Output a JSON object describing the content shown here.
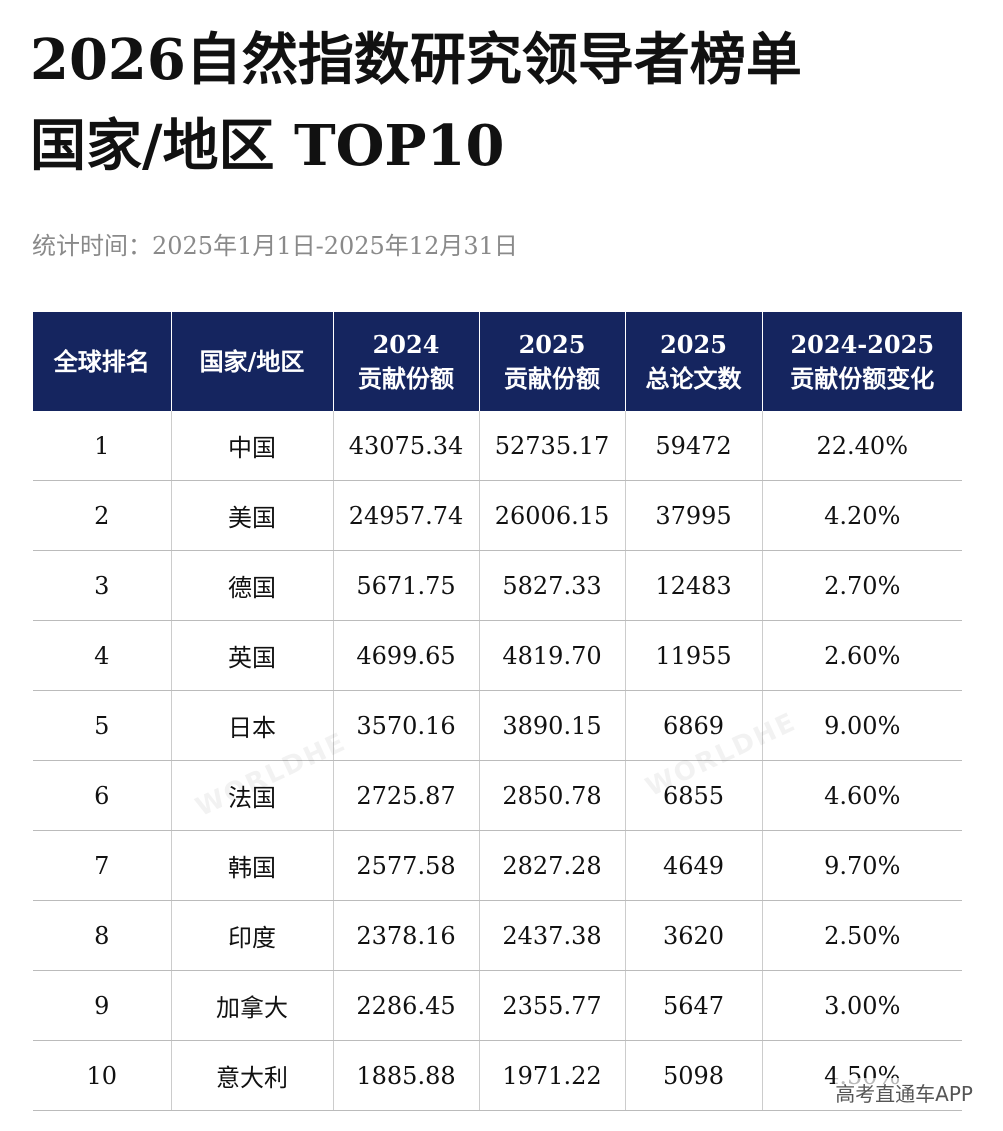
{
  "header": {
    "title_lines": [
      "2026自然指数研究领导者榜单",
      "国家/地区 TOP10"
    ],
    "subtitle": "统计时间：2025年1月1日-2025年12月31日"
  },
  "table": {
    "columns": [
      [
        "全球排名"
      ],
      [
        "国家/地区"
      ],
      [
        "2024",
        "贡献份额"
      ],
      [
        "2025",
        "贡献份额"
      ],
      [
        "2025",
        "总论文数"
      ],
      [
        "2024-2025",
        "贡献份额变化"
      ]
    ],
    "rows": [
      [
        "1",
        "中国",
        "43075.34",
        "52735.17",
        "59472",
        "22.40%"
      ],
      [
        "2",
        "美国",
        "24957.74",
        "26006.15",
        "37995",
        "4.20%"
      ],
      [
        "3",
        "德国",
        "5671.75",
        "5827.33",
        "12483",
        "2.70%"
      ],
      [
        "4",
        "英国",
        "4699.65",
        "4819.70",
        "11955",
        "2.60%"
      ],
      [
        "5",
        "日本",
        "3570.16",
        "3890.15",
        "6869",
        "9.00%"
      ],
      [
        "6",
        "法国",
        "2725.87",
        "2850.78",
        "6855",
        "4.60%"
      ],
      [
        "7",
        "韩国",
        "2577.58",
        "2827.28",
        "4649",
        "9.70%"
      ],
      [
        "8",
        "印度",
        "2378.16",
        "2437.38",
        "3620",
        "2.50%"
      ],
      [
        "9",
        "加拿大",
        "2286.45",
        "2355.77",
        "5647",
        "3.00%"
      ],
      [
        "10",
        "意大利",
        "1885.88",
        "1971.22",
        "5098",
        "4.50%"
      ]
    ]
  },
  "watermark": "WORLDHE",
  "footer": "高考直通车APP"
}
